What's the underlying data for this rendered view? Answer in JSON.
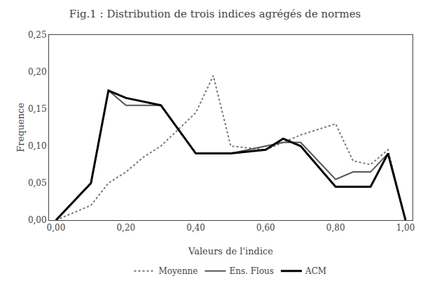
{
  "chart_data": {
    "type": "line",
    "title": "Fig.1 : Distribution de trois indices agrégés de normes",
    "xlabel": "Valeurs de l'indice",
    "ylabel": "Frequence",
    "x": [
      0.0,
      0.1,
      0.15,
      0.2,
      0.25,
      0.3,
      0.4,
      0.45,
      0.5,
      0.6,
      0.65,
      0.7,
      0.8,
      0.85,
      0.9,
      0.95,
      1.0
    ],
    "series": [
      {
        "name": "Moyenne",
        "color": "#777777",
        "line_style": "dotted",
        "values": [
          0.0,
          0.02,
          0.05,
          0.065,
          0.085,
          0.1,
          0.145,
          0.195,
          0.1,
          0.095,
          0.105,
          0.115,
          0.13,
          0.08,
          0.075,
          0.095,
          0.0
        ]
      },
      {
        "name": "Ens. Flous",
        "color": "#555555",
        "line_style": "solid",
        "values": [
          0.0,
          0.05,
          0.175,
          0.155,
          0.155,
          0.155,
          0.09,
          0.09,
          0.09,
          0.1,
          0.105,
          0.105,
          0.055,
          0.065,
          0.065,
          0.09,
          0.0
        ]
      },
      {
        "name": "ACM",
        "color": "#000000",
        "line_style": "solid",
        "values": [
          0.0,
          0.05,
          0.175,
          0.165,
          0.16,
          0.155,
          0.09,
          0.09,
          0.09,
          0.095,
          0.11,
          0.1,
          0.045,
          0.045,
          0.045,
          0.09,
          0.0
        ]
      }
    ],
    "xlim": [
      -0.02,
      1.02
    ],
    "ylim": [
      0.0,
      0.25
    ],
    "xticks": [
      {
        "value": 0.0,
        "label": "0,00"
      },
      {
        "value": 0.2,
        "label": "0,20"
      },
      {
        "value": 0.4,
        "label": "0,40"
      },
      {
        "value": 0.6,
        "label": "0,60"
      },
      {
        "value": 0.8,
        "label": "0,80"
      },
      {
        "value": 1.0,
        "label": "1,00"
      }
    ],
    "yticks": [
      {
        "value": 0.0,
        "label": "0,00"
      },
      {
        "value": 0.05,
        "label": "0,05"
      },
      {
        "value": 0.1,
        "label": "0,10"
      },
      {
        "value": 0.15,
        "label": "0,15"
      },
      {
        "value": 0.2,
        "label": "0,20"
      },
      {
        "value": 0.25,
        "label": "0,25"
      }
    ],
    "grid": false,
    "legend": "bottom"
  }
}
